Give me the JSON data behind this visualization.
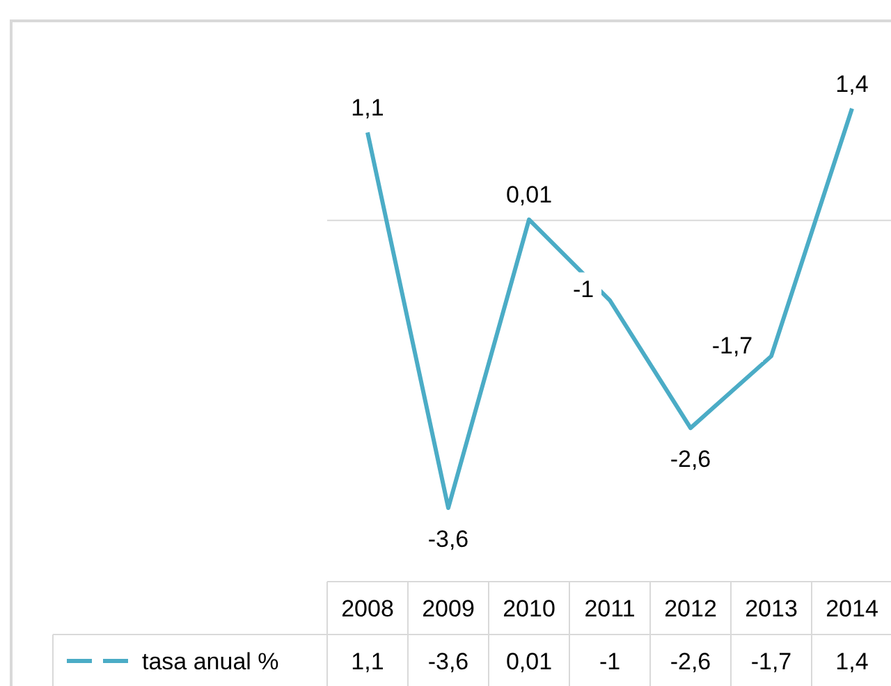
{
  "chart_data": {
    "type": "line",
    "categories": [
      "2008",
      "2009",
      "2010",
      "2011",
      "2012",
      "2013",
      "2014"
    ],
    "series": [
      {
        "name": "tasa anual %",
        "color": "#4bacc6",
        "values": [
          1.1,
          -3.6,
          0.01,
          -1,
          -2.6,
          -1.7,
          1.4
        ],
        "value_labels": [
          "1,1",
          "-3,6",
          "0,01",
          "-1",
          "-2,6",
          "-1,7",
          "1,4"
        ]
      }
    ],
    "tick_labels": "x",
    "data_labels": true,
    "line_style": "solid",
    "marker": "none"
  }
}
